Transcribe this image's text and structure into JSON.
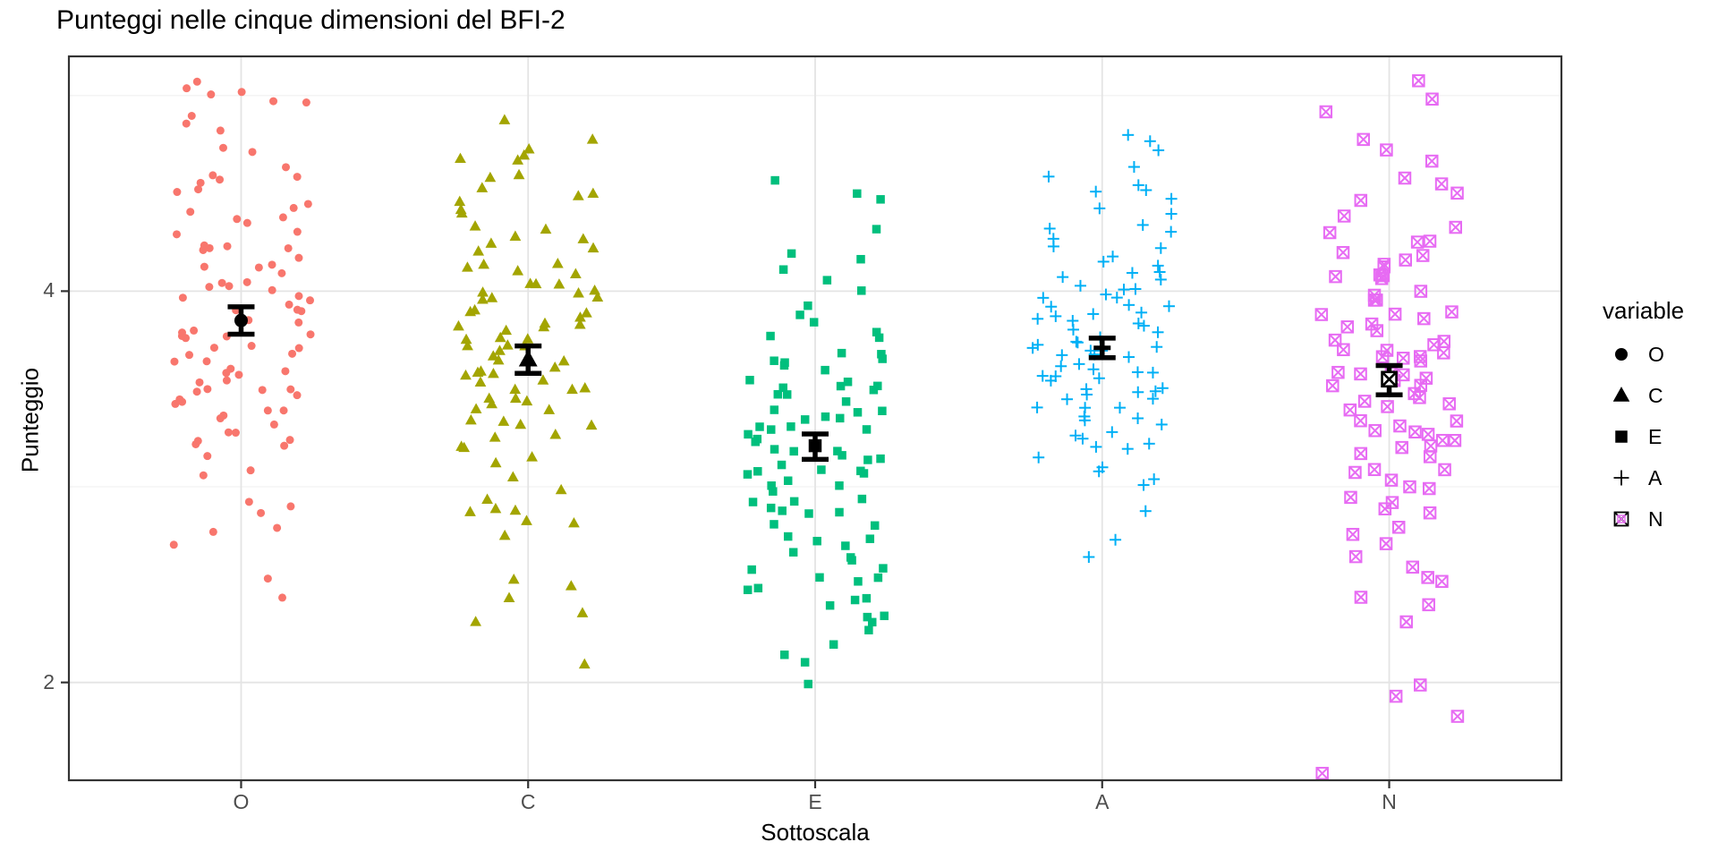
{
  "title": "Punteggi nelle cinque dimensioni del BFI-2",
  "chart_data": {
    "type": "scatter",
    "subtype": "jittered strip plot with mean and CI error bars",
    "title": "Punteggi nelle cinque dimensioni del BFI-2",
    "xlabel": "Sottoscala",
    "ylabel": "Punteggio",
    "categories": [
      "O",
      "C",
      "E",
      "A",
      "N"
    ],
    "y_ticks": [
      2,
      4
    ],
    "y_grid_major": [
      2,
      4
    ],
    "y_grid_minor": [
      3,
      5
    ],
    "ylim": [
      1.5,
      5.2
    ],
    "grid": "on, light gray, white panel, black panel border",
    "legend": {
      "title": "variable",
      "position": "right",
      "entries": [
        {
          "label": "O",
          "symbol": "circle"
        },
        {
          "label": "C",
          "symbol": "triangle"
        },
        {
          "label": "E",
          "symbol": "square"
        },
        {
          "label": "A",
          "symbol": "plus"
        },
        {
          "label": "N",
          "symbol": "square-x"
        }
      ]
    },
    "summary_marker": {
      "color": "#000000",
      "description": "group mean with error bars (CI)"
    },
    "colors": {
      "panel_border": "#333333",
      "grid_major": "#E4E4E4",
      "grid_minor": "#F2F2F2",
      "tick_label": "#4D4D4D",
      "text": "#000000"
    },
    "series": [
      {
        "name": "O",
        "shape": "circle",
        "color": "#F8766D",
        "mean": 3.85,
        "ci": [
          3.78,
          3.92
        ],
        "values": [
          2.45,
          2.55,
          2.7,
          2.75,
          2.8,
          2.85,
          2.9,
          2.9,
          3.05,
          3.1,
          3.15,
          3.2,
          3.2,
          3.25,
          3.25,
          3.3,
          3.3,
          3.3,
          3.35,
          3.35,
          3.4,
          3.4,
          3.4,
          3.45,
          3.45,
          3.45,
          3.5,
          3.5,
          3.5,
          3.5,
          3.55,
          3.55,
          3.55,
          3.6,
          3.6,
          3.6,
          3.65,
          3.65,
          3.65,
          3.7,
          3.7,
          3.7,
          3.7,
          3.75,
          3.75,
          3.75,
          3.8,
          3.8,
          3.8,
          3.85,
          3.85,
          3.85,
          3.9,
          3.9,
          3.9,
          3.95,
          3.95,
          3.95,
          4.0,
          4.0,
          4.0,
          4.05,
          4.05,
          4.05,
          4.1,
          4.1,
          4.1,
          4.15,
          4.15,
          4.2,
          4.2,
          4.2,
          4.25,
          4.25,
          4.3,
          4.3,
          4.35,
          4.35,
          4.4,
          4.4,
          4.45,
          4.45,
          4.5,
          4.5,
          4.55,
          4.55,
          4.6,
          4.6,
          4.65,
          4.7,
          4.75,
          4.8,
          4.85,
          4.9,
          4.95,
          4.95,
          5.0,
          5.0,
          5.05,
          5.05
        ]
      },
      {
        "name": "C",
        "shape": "triangle",
        "color": "#A3A500",
        "mean": 3.65,
        "ci": [
          3.58,
          3.72
        ],
        "values": [
          2.1,
          2.3,
          2.35,
          2.45,
          2.5,
          2.55,
          2.75,
          2.8,
          2.85,
          2.85,
          2.9,
          2.9,
          2.95,
          3.0,
          3.05,
          3.1,
          3.15,
          3.2,
          3.2,
          3.25,
          3.25,
          3.3,
          3.3,
          3.35,
          3.35,
          3.4,
          3.4,
          3.4,
          3.45,
          3.45,
          3.45,
          3.5,
          3.5,
          3.5,
          3.55,
          3.55,
          3.55,
          3.6,
          3.6,
          3.6,
          3.6,
          3.65,
          3.65,
          3.65,
          3.7,
          3.7,
          3.7,
          3.7,
          3.75,
          3.75,
          3.75,
          3.8,
          3.8,
          3.8,
          3.85,
          3.85,
          3.85,
          3.9,
          3.9,
          3.9,
          3.95,
          3.95,
          3.95,
          4.0,
          4.0,
          4.0,
          4.05,
          4.05,
          4.05,
          4.1,
          4.1,
          4.1,
          4.15,
          4.15,
          4.2,
          4.2,
          4.25,
          4.25,
          4.3,
          4.3,
          4.35,
          4.4,
          4.4,
          4.45,
          4.5,
          4.5,
          4.55,
          4.6,
          4.6,
          4.65,
          4.7,
          4.7,
          4.75,
          4.8,
          4.85
        ]
      },
      {
        "name": "E",
        "shape": "square",
        "color": "#00BF7D",
        "mean": 3.21,
        "ci": [
          3.14,
          3.27
        ],
        "values": [
          2.0,
          2.1,
          2.15,
          2.2,
          2.25,
          2.3,
          2.35,
          2.35,
          2.4,
          2.42,
          2.45,
          2.45,
          2.5,
          2.5,
          2.55,
          2.55,
          2.6,
          2.6,
          2.62,
          2.65,
          2.65,
          2.7,
          2.7,
          2.75,
          2.75,
          2.8,
          2.8,
          2.85,
          2.85,
          2.88,
          2.9,
          2.9,
          2.95,
          2.95,
          3.0,
          3.0,
          3.0,
          3.05,
          3.05,
          3.05,
          3.08,
          3.1,
          3.1,
          3.1,
          3.15,
          3.15,
          3.15,
          3.2,
          3.2,
          3.2,
          3.25,
          3.25,
          3.25,
          3.3,
          3.3,
          3.3,
          3.33,
          3.35,
          3.35,
          3.35,
          3.4,
          3.4,
          3.4,
          3.45,
          3.45,
          3.45,
          3.5,
          3.5,
          3.5,
          3.52,
          3.55,
          3.55,
          3.6,
          3.6,
          3.62,
          3.65,
          3.65,
          3.7,
          3.7,
          3.75,
          3.75,
          3.8,
          3.85,
          3.9,
          3.95,
          4.0,
          4.05,
          4.1,
          4.15,
          4.2,
          4.3,
          4.45,
          4.5,
          4.55
        ]
      },
      {
        "name": "A",
        "shape": "plus",
        "color": "#00B0F6",
        "mean": 3.71,
        "ci": [
          3.66,
          3.76
        ],
        "values": [
          2.65,
          2.75,
          2.9,
          3.0,
          3.05,
          3.1,
          3.1,
          3.15,
          3.2,
          3.2,
          3.22,
          3.25,
          3.25,
          3.3,
          3.3,
          3.35,
          3.35,
          3.37,
          3.4,
          3.4,
          3.4,
          3.45,
          3.45,
          3.45,
          3.48,
          3.5,
          3.5,
          3.5,
          3.55,
          3.55,
          3.55,
          3.58,
          3.6,
          3.6,
          3.6,
          3.62,
          3.65,
          3.65,
          3.65,
          3.68,
          3.7,
          3.7,
          3.7,
          3.7,
          3.72,
          3.75,
          3.75,
          3.75,
          3.8,
          3.8,
          3.8,
          3.82,
          3.85,
          3.85,
          3.85,
          3.9,
          3.9,
          3.9,
          3.92,
          3.95,
          3.95,
          3.95,
          4.0,
          4.0,
          4.0,
          4.02,
          4.05,
          4.05,
          4.1,
          4.1,
          4.15,
          4.15,
          4.2,
          4.2,
          4.25,
          4.25,
          4.3,
          4.3,
          4.35,
          4.4,
          4.4,
          4.45,
          4.5,
          4.5,
          4.55,
          4.6,
          4.65,
          4.7,
          4.75,
          4.8
        ]
      },
      {
        "name": "N",
        "shape": "square-x",
        "color": "#E76BF3",
        "mean": 3.55,
        "ci": [
          3.47,
          3.62
        ],
        "values": [
          1.55,
          1.85,
          1.95,
          2.0,
          2.3,
          2.4,
          2.45,
          2.5,
          2.55,
          2.6,
          2.65,
          2.7,
          2.75,
          2.8,
          2.85,
          2.9,
          2.9,
          2.95,
          3.0,
          3.0,
          3.05,
          3.05,
          3.1,
          3.1,
          3.15,
          3.15,
          3.2,
          3.2,
          3.22,
          3.25,
          3.25,
          3.3,
          3.3,
          3.32,
          3.35,
          3.35,
          3.4,
          3.4,
          3.42,
          3.45,
          3.45,
          3.5,
          3.5,
          3.52,
          3.55,
          3.55,
          3.55,
          3.6,
          3.6,
          3.6,
          3.65,
          3.65,
          3.65,
          3.68,
          3.7,
          3.7,
          3.7,
          3.75,
          3.75,
          3.75,
          3.8,
          3.8,
          3.85,
          3.85,
          3.88,
          3.9,
          3.9,
          3.95,
          3.95,
          4.0,
          4.0,
          4.05,
          4.05,
          4.08,
          4.1,
          4.1,
          4.15,
          4.15,
          4.2,
          4.2,
          4.25,
          4.25,
          4.3,
          4.35,
          4.4,
          4.45,
          4.5,
          4.55,
          4.6,
          4.65,
          4.7,
          4.8,
          4.9,
          5.0,
          5.1
        ]
      }
    ]
  }
}
